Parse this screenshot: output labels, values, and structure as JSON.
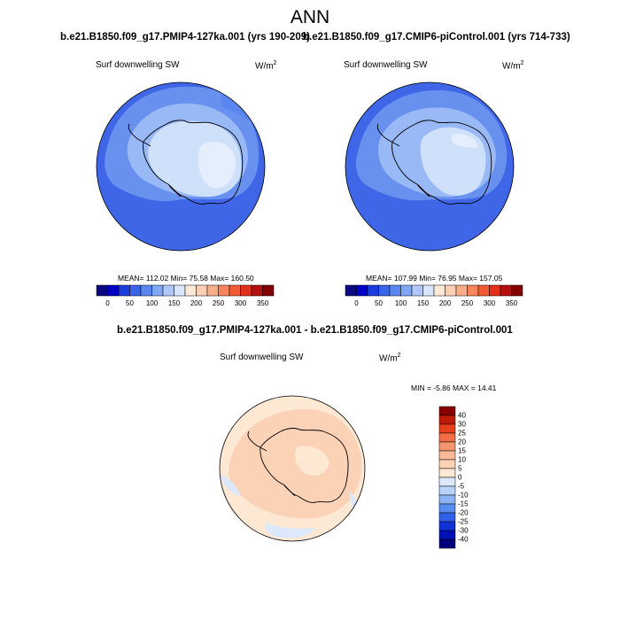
{
  "page_title": "ANN",
  "colors": {
    "abs_scale": [
      "#0a0a80",
      "#0000c8",
      "#1a3cdc",
      "#3a64e8",
      "#5a86f0",
      "#82a6f6",
      "#aec8fa",
      "#d8e6fc",
      "#fde9d8",
      "#fbcfb4",
      "#f9ae8a",
      "#f6845c",
      "#f25a34",
      "#e0301c",
      "#b41010",
      "#800000"
    ],
    "diff_scale": [
      "#00007a",
      "#0010b4",
      "#1030d8",
      "#3060e8",
      "#5a8cf0",
      "#8cb2f6",
      "#b8d2fa",
      "#dce8fc",
      "#fde8d4",
      "#fbd2b6",
      "#f9b896",
      "#f69670",
      "#f26e44",
      "#e6401c",
      "#c01a0a",
      "#880000"
    ]
  },
  "panel1": {
    "title": "b.e21.B1850.f09_g17.PMIP4-127ka.001 (yrs 190-209)",
    "variable": "Surf downwelling SW",
    "units": "W/m",
    "units_sup": "2",
    "stats": "MEAN= 112.02  Min=  75.58  Max= 160.50"
  },
  "panel2": {
    "title": "b.e21.B1850.f09_g17.CMIP6-piControl.001 (yrs 714-733)",
    "variable": "Surf downwelling SW",
    "units": "W/m",
    "units_sup": "2",
    "stats": "MEAN= 107.99  Min=  76.95  Max= 157.05"
  },
  "abs_ticks": [
    "0",
    "50",
    "100",
    "150",
    "200",
    "250",
    "300",
    "350"
  ],
  "panel3": {
    "title": "b.e21.B1850.f09_g17.PMIP4-127ka.001 - b.e21.B1850.f09_g17.CMIP6-piControl.001",
    "variable": "Surf downwelling SW",
    "units": "W/m",
    "units_sup": "2",
    "stats": "MIN =  -5.86 MAX =  14.41"
  },
  "diff_ticks": [
    "40",
    "30",
    "25",
    "20",
    "15",
    "10",
    "5",
    "0",
    "-5",
    "-10",
    "-15",
    "-20",
    "-25",
    "-30",
    "-40"
  ]
}
